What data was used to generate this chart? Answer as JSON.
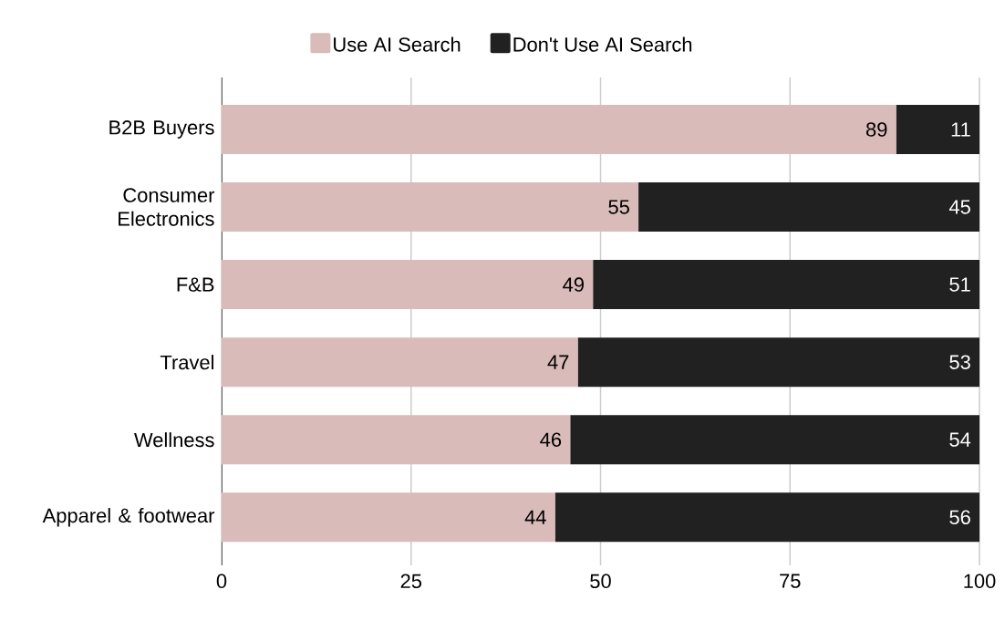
{
  "chart_data": {
    "type": "bar",
    "orientation": "horizontal",
    "stacked": true,
    "categories": [
      "B2B Buyers",
      "Consumer Electronics",
      "F&B",
      "Travel",
      "Wellness",
      "Apparel & footwear"
    ],
    "series": [
      {
        "name": "Use AI Search",
        "color": "#d9bbb9",
        "values": [
          89,
          55,
          49,
          47,
          46,
          44
        ]
      },
      {
        "name": "Don't Use AI Search",
        "color": "#212121",
        "values": [
          11,
          45,
          51,
          53,
          54,
          56
        ]
      }
    ],
    "xlim": [
      0,
      100
    ],
    "xticks": [
      0,
      25,
      50,
      75,
      100
    ],
    "grid": "x",
    "legend": "top",
    "data_labels": true
  }
}
